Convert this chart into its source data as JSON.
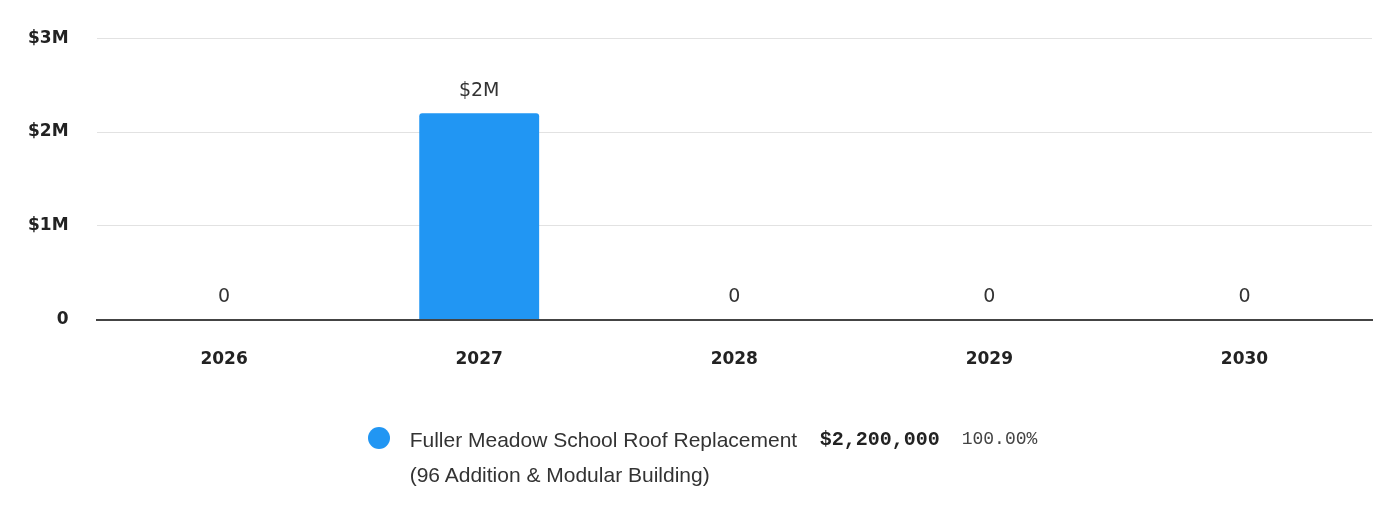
{
  "chart_data": {
    "type": "bar",
    "categories": [
      "2026",
      "2027",
      "2028",
      "2029",
      "2030"
    ],
    "series": [
      {
        "name": "Fuller Meadow School Roof Replacement (96 Addition & Modular Building)",
        "color": "#2196f3",
        "values": [
          0,
          2200000,
          0,
          0,
          0
        ],
        "value_labels": [
          "0",
          "$2M",
          "0",
          "0",
          "0"
        ]
      }
    ],
    "ylim": [
      0,
      3000000
    ],
    "yticks": [
      0,
      {
        "value": 1000000,
        "label": "$1M"
      },
      {
        "value": 2000000,
        "label": "$2M"
      },
      {
        "value": 3000000,
        "label": "$3M"
      }
    ],
    "grid": "y",
    "legend": "bottom",
    "annotations": [
      "$2,200,000",
      "100.00%"
    ]
  }
}
